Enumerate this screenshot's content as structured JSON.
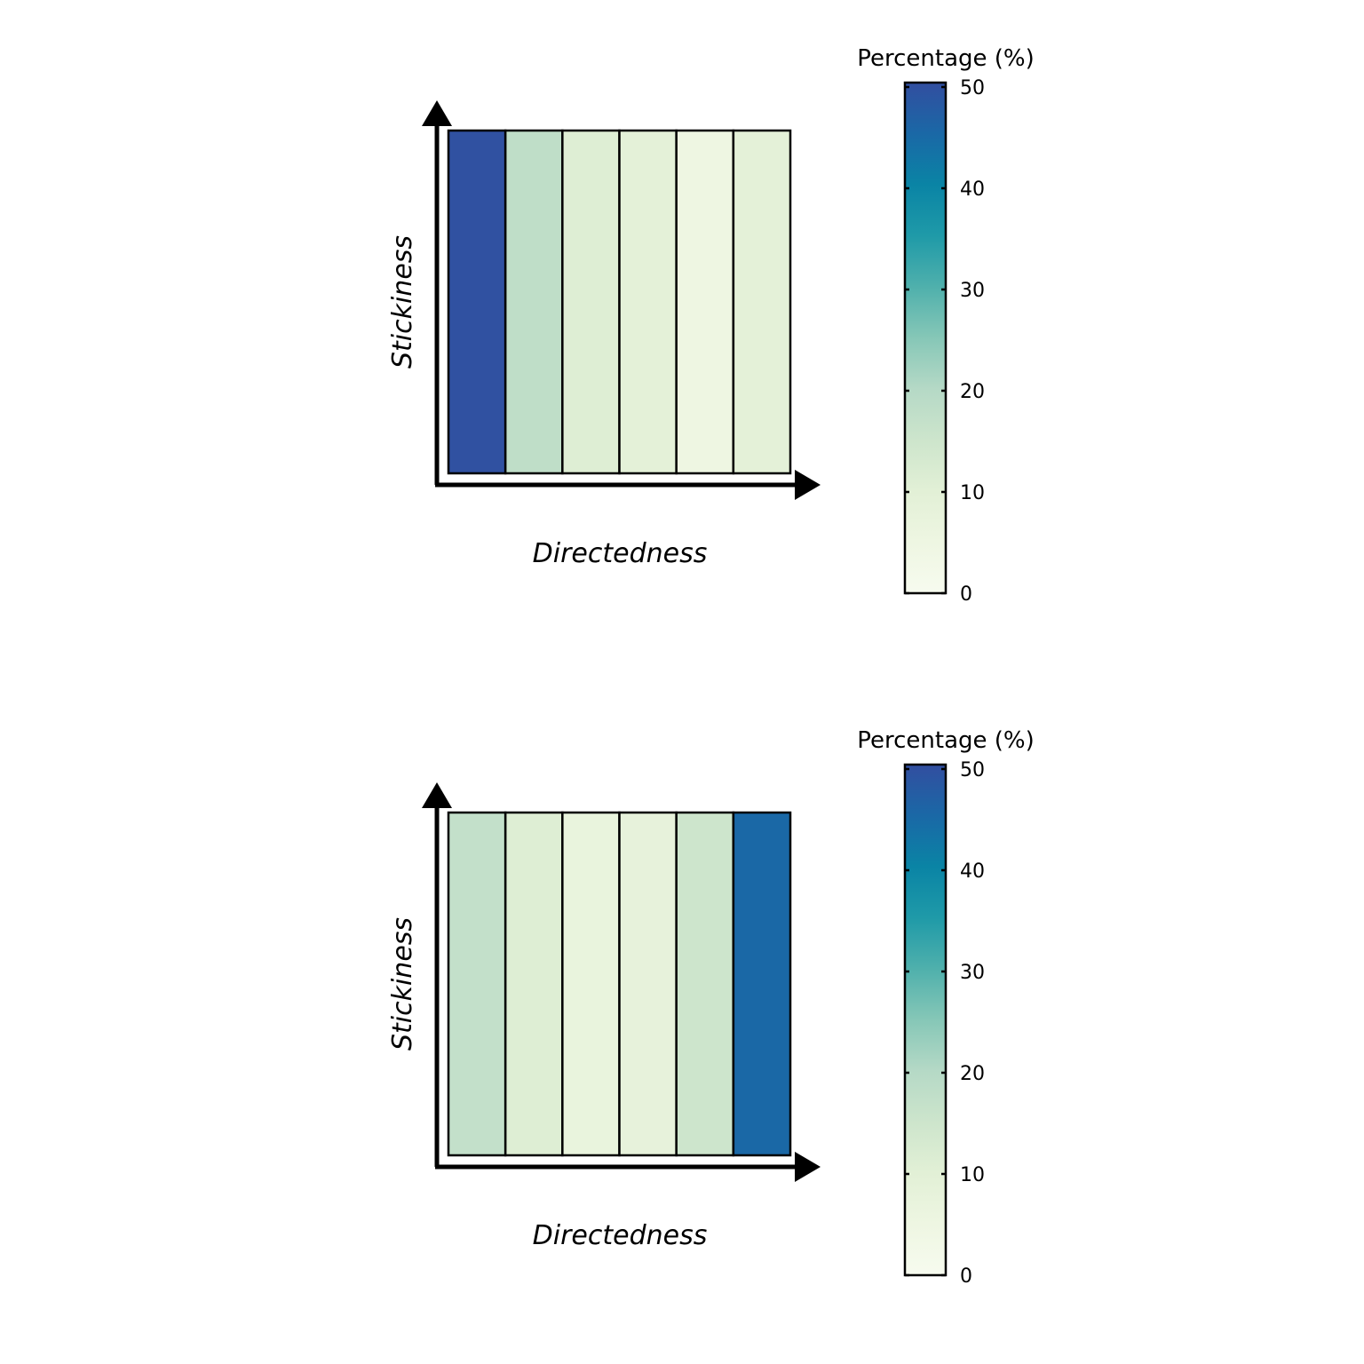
{
  "chart_data": [
    {
      "type": "heatmap",
      "xlabel": "Directedness",
      "ylabel": "Stickiness",
      "values": [
        49.5,
        18,
        11,
        9,
        5,
        9
      ],
      "legend": {
        "title": "Percentage (%)",
        "ticks": [
          "0",
          "10",
          "20",
          "30",
          "40",
          "50"
        ],
        "range": [
          0,
          50
        ],
        "placement": "right"
      }
    },
    {
      "type": "heatmap",
      "xlabel": "Directedness",
      "ylabel": "Stickiness",
      "values": [
        17,
        11,
        7,
        8,
        15,
        45
      ],
      "legend": {
        "title": "Percentage (%)",
        "ticks": [
          "0",
          "10",
          "20",
          "30",
          "40",
          "50"
        ],
        "range": [
          0,
          50
        ],
        "placement": "right"
      }
    }
  ],
  "colorscale": [
    "#f7fcf0",
    "#e0f3db",
    "#ccebc5",
    "#a8ddb5",
    "#7bccc4",
    "#4eb3d3",
    "#2b8cbe",
    "#0868ac",
    "#084081"
  ],
  "colors": {
    "scale_stops": [
      {
        "v": 0,
        "c": "#f7fbef"
      },
      {
        "v": 5,
        "c": "#eef6e2"
      },
      {
        "v": 10,
        "c": "#e2f0d6"
      },
      {
        "v": 15,
        "c": "#cde5cc"
      },
      {
        "v": 20,
        "c": "#b5d9c6"
      },
      {
        "v": 25,
        "c": "#86c7b7"
      },
      {
        "v": 30,
        "c": "#4fb0ac"
      },
      {
        "v": 35,
        "c": "#1f9aa8"
      },
      {
        "v": 40,
        "c": "#0a84a5"
      },
      {
        "v": 45,
        "c": "#1a68a6"
      },
      {
        "v": 50,
        "c": "#324ea0"
      }
    ]
  }
}
